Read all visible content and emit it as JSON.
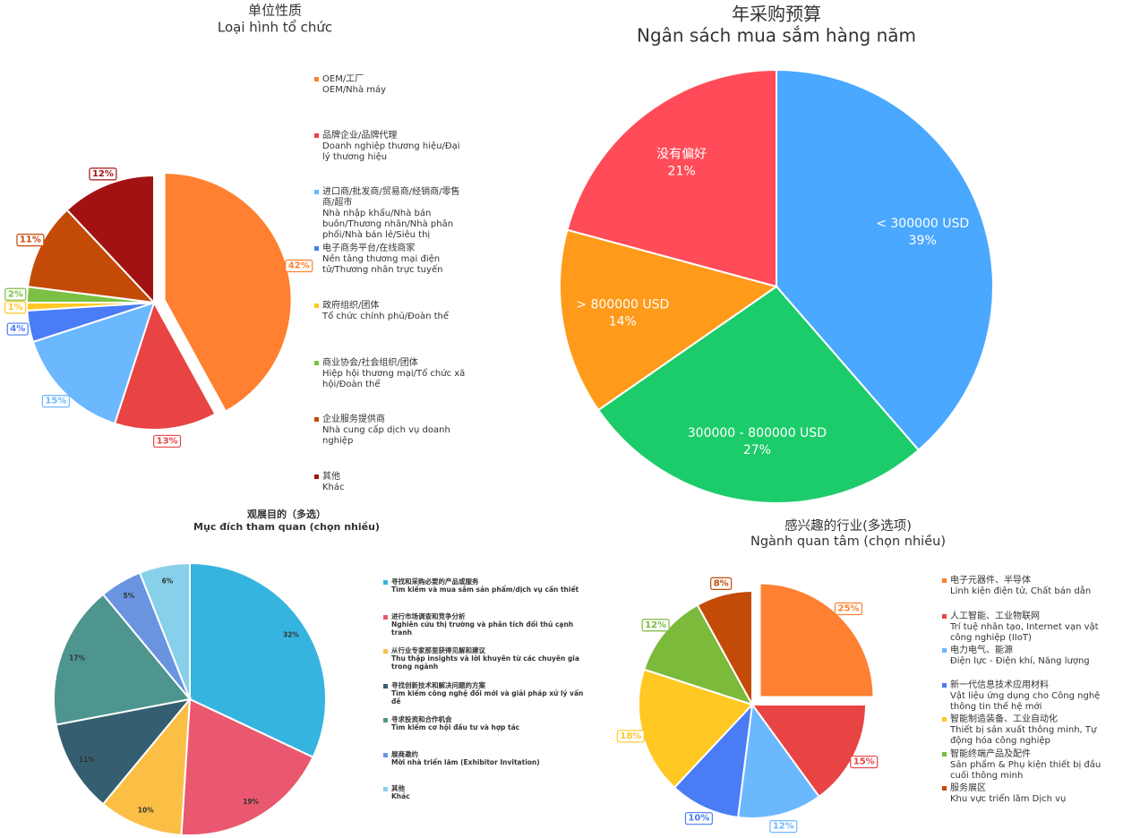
{
  "chart_data": [
    {
      "type": "pie",
      "title": "单位性质",
      "subtitle": "Loại hình tổ chức",
      "categories": [
        "OEM/工厂\nOEM/Nhà máy",
        "品牌企业/品牌代理\nDoanh nghiệp thương hiệu/Đại lý thương hiệu",
        "进口商/批发商/贸易商/经销商/零售商/超市\nNhà nhập khẩu/Nhà bán buôn/Thương nhân/Nhà phân phối/Nhà bán lẻ/Siêu thị",
        "电子商务平台/在线商家\nNền tảng thương mại điện tử/Thương nhân trực tuyến",
        "政府组织/团体\nTổ chức chính phủ/Đoàn thể",
        "商业协会/社会组织/团体\nHiệp hội thương mại/Tổ chức xã hội/Đoàn thể",
        "企业服务提供商\nNhà cung cấp dịch vụ doanh nghiệp",
        "其他\nKhác"
      ],
      "values": [
        42,
        13,
        15,
        4,
        1,
        2,
        11,
        12
      ],
      "value_labels": [
        "42%",
        "13%",
        "15%",
        "4%",
        "1%",
        "2%",
        "11%",
        "12%"
      ],
      "colors": [
        "#ff8030",
        "#e84444",
        "#6cb8ff",
        "#4a7cf5",
        "#ffc823",
        "#7cc043",
        "#c44a08",
        "#a31212"
      ]
    },
    {
      "type": "pie",
      "title": "年采购预算",
      "subtitle": "Ngân sách mua sắm hàng năm",
      "categories": [
        "< 300000 USD",
        "300000 - 800000 USD",
        "> 800000 USD",
        "没有偏好"
      ],
      "values": [
        39,
        27,
        14,
        21
      ],
      "value_labels": [
        "39%",
        "27%",
        "14%",
        "21%"
      ],
      "colors": [
        "#4aa8ff",
        "#1ccc6a",
        "#ff9a1a",
        "#ff4c58"
      ]
    },
    {
      "type": "pie",
      "title": "观展目的（多选）",
      "subtitle": "Mục đích tham quan (chọn nhiều)",
      "categories": [
        "寻找和采购必要的产品或服务\nTìm kiếm và mua sắm sản phẩm/dịch vụ cần thiết",
        "进行市场调查和竞争分析\nNghiên cứu thị trường và phân tích đối thủ cạnh tranh",
        "从行业专家那里获得见解和建议\nThu thập insights và lời khuyên từ các chuyên gia trong ngành",
        "寻找创新技术和解决问题的方案\nTìm kiếm công nghệ đổi mới và giải pháp xử lý vấn đề",
        "寻求投资和合作机会\nTìm kiếm cơ hội đầu tư và hợp tác",
        "展商邀约\nMời nhà triển lãm (Exhibitor Invitation)",
        "其他\nKhác"
      ],
      "values": [
        32,
        19,
        10,
        11,
        17,
        5,
        6
      ],
      "value_labels": [
        "32%",
        "19%",
        "10%",
        "11%",
        "17%",
        "5%",
        "6%"
      ],
      "colors": [
        "#35b4e0",
        "#e9586f",
        "#fbbf45",
        "#355f70",
        "#4e958f",
        "#6a94e0",
        "#88d0ea"
      ]
    },
    {
      "type": "pie",
      "title": "感兴趣的行业(多选项)",
      "subtitle": "Ngành quan tâm (chọn nhiều)",
      "categories": [
        "电子元器件、半导体\nLinh kiện điện tử, Chất bán dẫn",
        "人工智能、工业物联网\nTrí tuệ nhân tạo, Internet vạn vật công nghiệp (IIoT)",
        "电力电气、能源\nĐiện lực - Điện khí, Năng lượng",
        "新一代信息技术应用材料\nVật liệu ứng dụng cho Công nghệ thông tin thế hệ mới",
        "智能制造装备、工业自动化\nThiết bị sản xuất thông minh, Tự động hóa công nghiệp",
        "智能终端产品及配件\nSản phẩm & Phụ kiện thiết bị đầu cuối thông minh",
        "服务展区\nKhu vực triển lãm Dịch vụ"
      ],
      "values": [
        25,
        15,
        12,
        10,
        18,
        12,
        8
      ],
      "value_labels": [
        "25%",
        "15%",
        "12%",
        "10%",
        "18%",
        "12%",
        "8%"
      ],
      "colors": [
        "#ff8030",
        "#e84444",
        "#6cb8ff",
        "#4a7cf5",
        "#ffc823",
        "#7cba3c",
        "#c44a08"
      ]
    }
  ]
}
